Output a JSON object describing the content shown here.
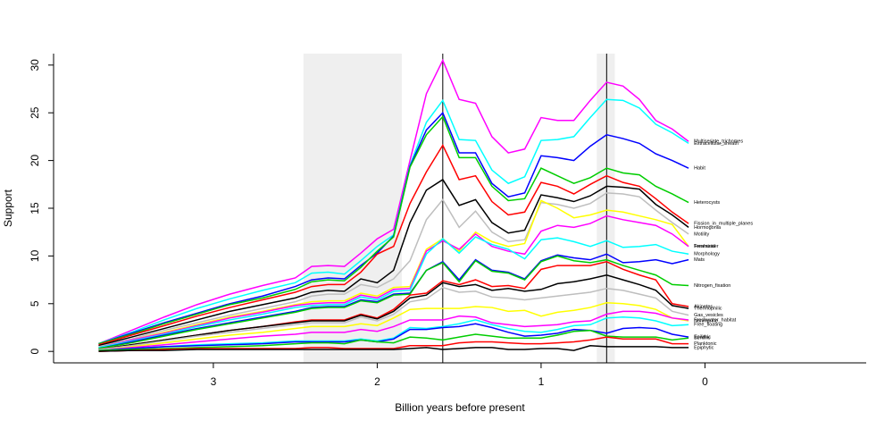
{
  "chart_data": {
    "type": "line",
    "x_label": "Billion years before present",
    "y_label": "Support",
    "xlim": [
      3.975,
      -0.984
    ],
    "ylim": [
      -1.2,
      31.2
    ],
    "xticks": [
      3,
      2,
      1,
      0
    ],
    "yticks": [
      0,
      5,
      10,
      15,
      20,
      25,
      30
    ],
    "shaded_ranges": [
      [
        2.45,
        1.85
      ],
      [
        0.66,
        0.55
      ]
    ],
    "shade_color": "#efefef",
    "vlines": [
      1.6,
      0.6
    ],
    "x": [
      3.7,
      3.5,
      3.3,
      3.1,
      2.9,
      2.7,
      2.5,
      2.4,
      2.3,
      2.2,
      2.1,
      2.0,
      1.9,
      1.8,
      1.7,
      1.6,
      1.5,
      1.4,
      1.3,
      1.2,
      1.1,
      1.0,
      0.9,
      0.8,
      0.7,
      0.6,
      0.5,
      0.4,
      0.3,
      0.2,
      0.1
    ],
    "series": [
      {
        "name": "Multiseriate_trichomes",
        "color": "#ff00ff",
        "values": [
          0.8,
          2.2,
          3.6,
          4.9,
          6.0,
          6.9,
          7.7,
          8.9,
          9.0,
          8.9,
          10.3,
          11.8,
          12.8,
          20,
          27,
          30.5,
          26.4,
          26,
          22.5,
          20.8,
          21.2,
          24.5,
          24.2,
          24.2,
          26.3,
          28.2,
          27.8,
          26.4,
          24.2,
          23.3,
          22
        ]
      },
      {
        "name": "Extracellular_sheath",
        "color": "#00ffff",
        "values": [
          0.8,
          2.0,
          3.3,
          4.5,
          5.5,
          6.4,
          7.2,
          8.2,
          8.3,
          8.1,
          9.5,
          11,
          12.2,
          19.5,
          24,
          26.3,
          22.2,
          22.1,
          19,
          17.6,
          18.3,
          22.1,
          22.2,
          22.5,
          24.5,
          26.4,
          26.3,
          25.5,
          23.8,
          22.9,
          21.8
        ]
      },
      {
        "name": "Habit",
        "color": "#0000ff",
        "values": [
          0.8,
          1.9,
          3.0,
          4.0,
          5.0,
          5.8,
          6.8,
          7.5,
          7.7,
          7.6,
          9.0,
          10.3,
          12.1,
          19.4,
          23.2,
          25.0,
          20.8,
          20.8,
          17.6,
          16.2,
          16.6,
          20.5,
          20.3,
          20.0,
          21.5,
          22.7,
          22.3,
          21.8,
          20.7,
          20.0,
          19.2
        ]
      },
      {
        "name": "Heterocysts",
        "color": "#00cd00",
        "values": [
          0.8,
          1.8,
          2.9,
          3.9,
          4.9,
          5.6,
          6.5,
          7.3,
          7.5,
          7.4,
          8.8,
          10.5,
          12.0,
          19.3,
          22.7,
          24.6,
          20.3,
          20.3,
          17.3,
          15.8,
          16.0,
          19.2,
          18.4,
          17.6,
          18.2,
          19.2,
          18.7,
          18.5,
          17.3,
          16.5,
          15.6
        ]
      },
      {
        "name": "Fission_in_multiple_planes",
        "color": "#ff0000",
        "values": [
          0.7,
          1.7,
          2.7,
          3.7,
          4.6,
          5.4,
          6.2,
          6.8,
          7.0,
          7.0,
          8.3,
          10.2,
          11.0,
          15.5,
          18.8,
          21.6,
          18.0,
          18.4,
          15.7,
          14.3,
          14.6,
          17.7,
          17.3,
          16.5,
          17.5,
          18.4,
          17.7,
          17.3,
          16.0,
          14.6,
          13.4
        ]
      },
      {
        "name": "Hormogonia",
        "color": "#000000",
        "values": [
          0.6,
          1.5,
          2.4,
          3.3,
          4.2,
          4.9,
          5.6,
          6.2,
          6.4,
          6.3,
          7.6,
          7.2,
          8.5,
          13.5,
          16.9,
          18.0,
          15.3,
          15.9,
          13.5,
          12.4,
          12.7,
          16.4,
          16.1,
          15.7,
          16.3,
          17.3,
          17.2,
          17.0,
          15.4,
          14.3,
          13.0
        ]
      },
      {
        "name": "Motility",
        "color": "#bebebe",
        "values": [
          0.5,
          1.3,
          2.2,
          3.0,
          3.8,
          4.5,
          5.2,
          5.8,
          6.0,
          6.0,
          7.0,
          6.7,
          7.6,
          9.5,
          13.8,
          15.9,
          13.0,
          14.7,
          12.5,
          11.5,
          11.7,
          15.6,
          15.4,
          15.0,
          15.5,
          16.6,
          16.5,
          16.2,
          14.8,
          13.5,
          12.3
        ]
      },
      {
        "name": "Freshwater",
        "color": "#ffff00",
        "values": [
          0.4,
          1.2,
          2.0,
          2.8,
          3.6,
          4.2,
          4.9,
          5.2,
          5.3,
          5.3,
          6.1,
          5.8,
          6.7,
          6.8,
          10.7,
          11.8,
          10.5,
          12.5,
          11.5,
          11.0,
          11.3,
          15.8,
          15.0,
          14.0,
          14.3,
          14.8,
          14.6,
          14.2,
          13.8,
          13.3,
          11.0
        ]
      },
      {
        "name": "Terrestrial",
        "color": "#ff00ff",
        "values": [
          0.4,
          1.2,
          1.9,
          2.7,
          3.5,
          4.1,
          4.8,
          5.0,
          5.1,
          5.1,
          5.9,
          5.6,
          6.5,
          6.6,
          10.5,
          11.6,
          10.7,
          12.3,
          11.0,
          10.5,
          10.2,
          12.6,
          13.2,
          13.0,
          13.4,
          14.2,
          13.8,
          13.5,
          13.2,
          12.3,
          11.0
        ]
      },
      {
        "name": "Morphology",
        "color": "#00ffff",
        "values": [
          0.4,
          1.1,
          1.8,
          2.6,
          3.3,
          3.9,
          4.6,
          4.8,
          4.9,
          4.9,
          5.7,
          5.4,
          6.3,
          6.4,
          10.2,
          11.8,
          10.3,
          12.0,
          11.2,
          10.7,
          9.7,
          11.7,
          11.9,
          11.5,
          11.0,
          11.6,
          10.9,
          11.0,
          11.2,
          10.5,
          10.2
        ]
      },
      {
        "name": "Mats",
        "color": "#0000ff",
        "values": [
          0.3,
          1.0,
          1.7,
          2.4,
          3.0,
          3.6,
          4.2,
          4.6,
          4.7,
          4.7,
          5.4,
          5.2,
          6.0,
          6.1,
          8.5,
          9.4,
          7.5,
          9.6,
          8.5,
          8.3,
          7.6,
          9.5,
          10.1,
          9.8,
          9.6,
          10.2,
          9.3,
          9.4,
          9.6,
          9.2,
          9.6
        ]
      },
      {
        "name": "Nitrogen_fixation",
        "color": "#00cd00",
        "values": [
          0.3,
          0.9,
          1.6,
          2.3,
          2.9,
          3.5,
          4.1,
          4.5,
          4.6,
          4.6,
          5.3,
          5.1,
          5.9,
          6.0,
          8.5,
          9.3,
          7.3,
          9.5,
          8.4,
          8.2,
          7.5,
          9.4,
          10.0,
          9.5,
          9.3,
          9.6,
          9.0,
          8.5,
          8.0,
          7.0,
          6.9
        ]
      },
      {
        "name": "Akinetes",
        "color": "#ff0000",
        "values": [
          0.2,
          0.7,
          1.2,
          1.7,
          2.2,
          2.6,
          3.1,
          3.3,
          3.3,
          3.3,
          3.9,
          3.5,
          4.4,
          5.9,
          6.1,
          7.4,
          7.0,
          7.5,
          6.8,
          6.9,
          6.6,
          8.6,
          9.0,
          9.0,
          9.0,
          9.4,
          8.6,
          8.0,
          7.5,
          5.0,
          4.7
        ]
      },
      {
        "name": "Thermophilic",
        "color": "#000000",
        "values": [
          0.2,
          0.7,
          1.2,
          1.7,
          2.2,
          2.6,
          3.0,
          3.2,
          3.2,
          3.2,
          3.8,
          3.4,
          4.2,
          5.6,
          5.9,
          7.2,
          6.8,
          7.0,
          6.4,
          6.6,
          6.3,
          6.5,
          7.1,
          7.3,
          7.6,
          8.0,
          7.5,
          7.0,
          6.4,
          4.8,
          4.5
        ]
      },
      {
        "name": "Gas_vesicles",
        "color": "#bebebe",
        "values": [
          0.2,
          0.6,
          1.1,
          1.6,
          2.0,
          2.4,
          2.8,
          3.0,
          3.0,
          3.0,
          3.6,
          3.2,
          3.9,
          5.2,
          5.5,
          6.7,
          6.2,
          6.3,
          5.7,
          5.6,
          5.4,
          5.6,
          5.8,
          6.0,
          6.2,
          6.6,
          6.4,
          6.0,
          5.6,
          4.2,
          3.8
        ]
      },
      {
        "name": "Nonmarine",
        "color": "#ffff00",
        "values": [
          0.1,
          0.5,
          0.9,
          1.3,
          1.7,
          2.0,
          2.4,
          2.6,
          2.6,
          2.6,
          2.9,
          2.7,
          3.5,
          4.4,
          4.5,
          4.5,
          4.5,
          4.7,
          4.6,
          4.2,
          4.3,
          3.7,
          4.1,
          4.3,
          4.6,
          5.1,
          5.0,
          4.8,
          4.4,
          3.5,
          3.2
        ]
      },
      {
        "name": "Freshwater_habitat",
        "color": "#ff00ff",
        "values": [
          0.1,
          0.4,
          0.7,
          1.0,
          1.3,
          1.6,
          1.8,
          2.0,
          2.0,
          2.0,
          2.3,
          2.1,
          2.6,
          3.3,
          3.3,
          3.3,
          3.7,
          3.6,
          3.0,
          2.8,
          2.6,
          2.7,
          2.8,
          3.1,
          3.2,
          3.9,
          4.2,
          4.2,
          4.0,
          3.5,
          3.3
        ]
      },
      {
        "name": "Free_floating",
        "color": "#00ffff",
        "values": [
          0.1,
          0.3,
          0.5,
          0.7,
          0.8,
          0.9,
          1.1,
          1.1,
          1.1,
          1.1,
          1.3,
          1.1,
          1.4,
          2.5,
          2.4,
          2.6,
          2.9,
          3.3,
          2.8,
          2.4,
          2.1,
          2.0,
          2.3,
          2.7,
          2.8,
          3.5,
          3.6,
          3.5,
          3.2,
          2.7,
          2.8
        ]
      },
      {
        "name": "Epilithic",
        "color": "#0000ff",
        "values": [
          0.1,
          0.3,
          0.5,
          0.6,
          0.7,
          0.8,
          1.0,
          1.0,
          1.0,
          1.0,
          1.2,
          1.0,
          1.3,
          2.3,
          2.3,
          2.5,
          2.6,
          2.9,
          2.5,
          2.0,
          1.6,
          1.7,
          1.9,
          2.3,
          2.2,
          1.9,
          2.4,
          2.5,
          2.4,
          1.8,
          1.5
        ]
      },
      {
        "name": "Benthic",
        "color": "#00cd00",
        "values": [
          0.1,
          0.2,
          0.3,
          0.4,
          0.5,
          0.6,
          0.8,
          0.9,
          0.9,
          0.8,
          1.2,
          1.0,
          0.9,
          1.5,
          1.4,
          1.2,
          1.5,
          1.8,
          1.6,
          1.4,
          1.4,
          1.4,
          1.7,
          2.1,
          2.2,
          1.6,
          1.5,
          1.5,
          1.5,
          1.2,
          1.4
        ]
      },
      {
        "name": "Planktonic",
        "color": "#ff0000",
        "values": [
          0.0,
          0.1,
          0.2,
          0.3,
          0.3,
          0.3,
          0.3,
          0.4,
          0.4,
          0.3,
          0.3,
          0.3,
          0.3,
          0.6,
          0.6,
          0.6,
          0.9,
          1.0,
          1.0,
          0.9,
          0.8,
          0.8,
          0.9,
          1.0,
          1.2,
          1.5,
          1.3,
          1.3,
          1.3,
          0.8,
          0.8
        ]
      },
      {
        "name": "Epiphytic",
        "color": "#000000",
        "values": [
          0.0,
          0.1,
          0.1,
          0.2,
          0.2,
          0.2,
          0.2,
          0.2,
          0.2,
          0.2,
          0.2,
          0.2,
          0.2,
          0.3,
          0.4,
          0.2,
          0.3,
          0.4,
          0.4,
          0.2,
          0.2,
          0.3,
          0.3,
          0.1,
          0.6,
          0.5,
          0.5,
          0.5,
          0.5,
          0.4,
          0.4
        ]
      }
    ]
  }
}
